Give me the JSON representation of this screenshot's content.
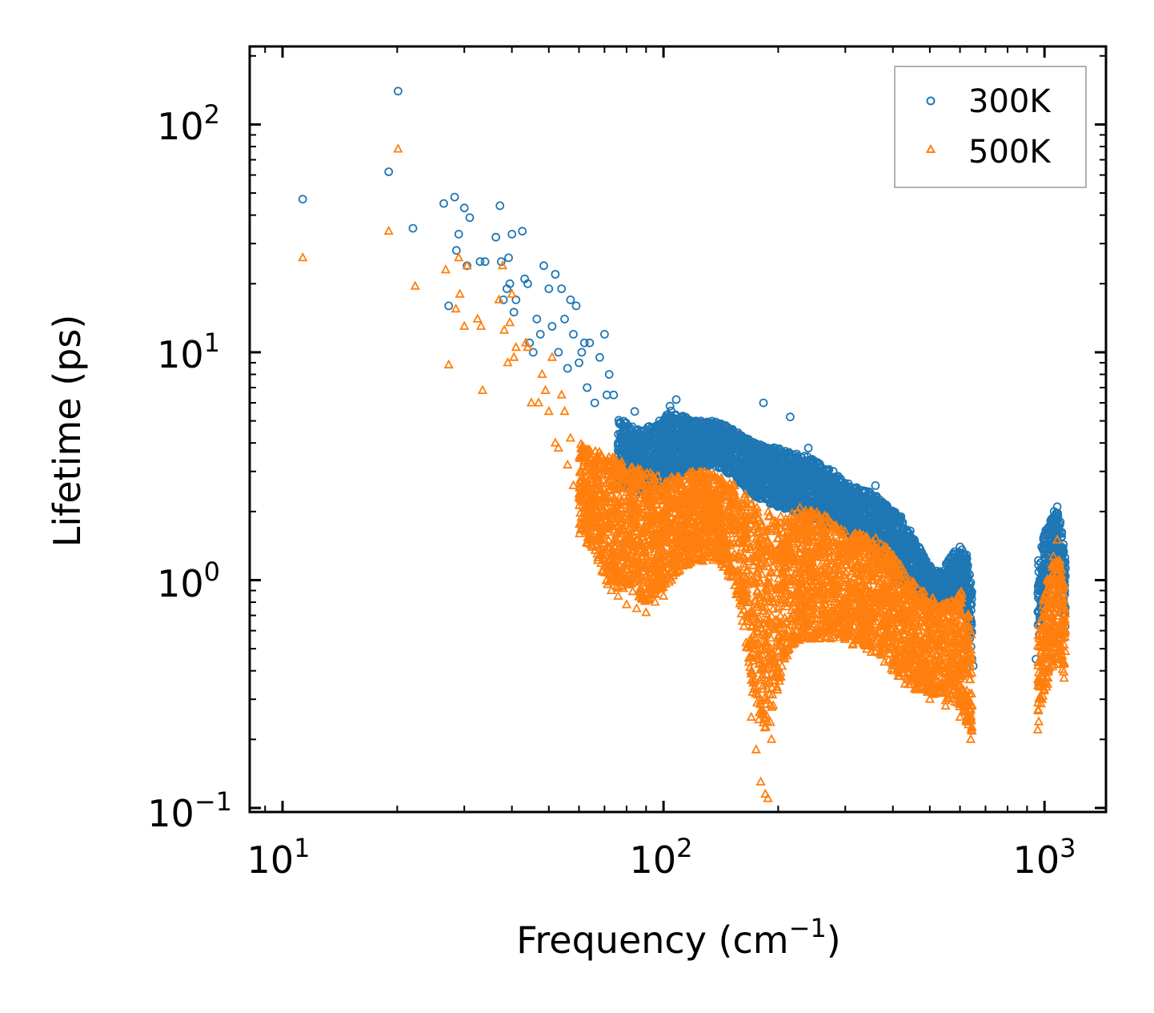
{
  "chart_data": {
    "type": "scatter",
    "title": "",
    "xlabel": "Frequency (cm",
    "xlabel_exp": "−1",
    "xlabel_suffix": ")",
    "ylabel": "Lifetime (ps)",
    "xscale": "log",
    "yscale": "log",
    "xlim": [
      8.2,
      1450
    ],
    "ylim": [
      0.096,
      220
    ],
    "xticks": [
      {
        "value": 10,
        "base": "10",
        "exp": "1"
      },
      {
        "value": 100,
        "base": "10",
        "exp": "2"
      },
      {
        "value": 1000,
        "base": "10",
        "exp": "3"
      }
    ],
    "yticks": [
      {
        "value": 0.1,
        "base": "10",
        "exp": "−1"
      },
      {
        "value": 1,
        "base": "10",
        "exp": "0"
      },
      {
        "value": 10,
        "base": "10",
        "exp": "1"
      },
      {
        "value": 100,
        "base": "10",
        "exp": "2"
      }
    ],
    "legend_position": "top-right",
    "series": [
      {
        "name": "300K",
        "marker": "circle",
        "color": "#1f77b4",
        "points": [
          [
            11.3,
            47
          ],
          [
            19.0,
            62
          ],
          [
            20.1,
            140
          ],
          [
            22.0,
            35
          ],
          [
            26.5,
            45
          ],
          [
            27.3,
            16
          ],
          [
            28.3,
            48
          ],
          [
            28.6,
            28
          ],
          [
            29.0,
            33
          ],
          [
            30.0,
            43
          ],
          [
            30.5,
            24
          ],
          [
            31.0,
            39
          ],
          [
            33.0,
            25
          ],
          [
            34.0,
            25
          ],
          [
            36.3,
            32
          ],
          [
            37.2,
            44
          ],
          [
            37.5,
            25
          ],
          [
            38.0,
            17
          ],
          [
            38.8,
            19
          ],
          [
            39.2,
            26
          ],
          [
            39.5,
            20
          ],
          [
            40.0,
            33
          ],
          [
            40.5,
            15
          ],
          [
            41.0,
            17
          ],
          [
            42.6,
            34
          ],
          [
            43.2,
            21
          ],
          [
            44.0,
            20
          ],
          [
            44.5,
            11
          ],
          [
            45.5,
            10
          ],
          [
            46.5,
            14
          ],
          [
            47.5,
            12
          ],
          [
            48.5,
            24
          ],
          [
            50.0,
            19
          ],
          [
            51.0,
            13
          ],
          [
            52.0,
            22
          ],
          [
            53.0,
            10
          ],
          [
            54.0,
            19
          ],
          [
            55.0,
            14
          ],
          [
            56.0,
            8.5
          ],
          [
            57.0,
            17
          ],
          [
            58.0,
            12
          ],
          [
            59.0,
            16
          ],
          [
            60.0,
            9.0
          ],
          [
            61.0,
            10
          ],
          [
            62.0,
            11
          ],
          [
            63.0,
            7.0
          ],
          [
            64.0,
            11
          ],
          [
            66.0,
            6.0
          ],
          [
            68.0,
            9.5
          ],
          [
            70.0,
            12
          ],
          [
            71.0,
            6.5
          ],
          [
            72.0,
            8.0
          ],
          [
            74.0,
            6.5
          ],
          [
            76.0,
            4.0
          ],
          [
            78.0,
            3.5
          ],
          [
            80.0,
            3.2
          ],
          [
            82.0,
            3.8
          ],
          [
            84.0,
            5.5
          ],
          [
            86.0,
            3.0
          ],
          [
            88.0,
            2.8
          ],
          [
            90.0,
            3.2
          ],
          [
            95.0,
            3.6
          ],
          [
            100.0,
            5.0
          ],
          [
            104.0,
            5.8
          ],
          [
            108.0,
            6.2
          ],
          [
            112.0,
            4.5
          ],
          [
            118.0,
            4.2
          ],
          [
            125.0,
            4.0
          ],
          [
            132.0,
            4.6
          ],
          [
            140.0,
            4.8
          ],
          [
            150.0,
            4.5
          ],
          [
            160.0,
            4.2
          ],
          [
            170.0,
            3.8
          ],
          [
            178.0,
            3.3
          ],
          [
            183.0,
            6.0
          ],
          [
            188.0,
            3.8
          ],
          [
            195.0,
            3.6
          ],
          [
            205.0,
            3.2
          ],
          [
            215.0,
            5.2
          ],
          [
            225.0,
            3.5
          ],
          [
            240.0,
            3.8
          ],
          [
            255.0,
            3.2
          ],
          [
            270.0,
            3.0
          ],
          [
            285.0,
            2.6
          ],
          [
            300.0,
            2.5
          ],
          [
            320.0,
            2.3
          ],
          [
            340.0,
            2.2
          ],
          [
            360.0,
            2.6
          ],
          [
            380.0,
            2.0
          ],
          [
            400.0,
            1.8
          ],
          [
            420.0,
            1.9
          ],
          [
            440.0,
            1.6
          ],
          [
            460.0,
            1.3
          ],
          [
            480.0,
            1.1
          ],
          [
            500.0,
            0.95
          ],
          [
            520.0,
            1.05
          ],
          [
            540.0,
            1.0
          ],
          [
            560.0,
            1.2
          ],
          [
            580.0,
            1.3
          ],
          [
            600.0,
            1.4
          ],
          [
            620.0,
            1.0
          ],
          [
            640.0,
            0.6
          ],
          [
            650.0,
            0.42
          ],
          [
            950.0,
            0.45
          ],
          [
            980.0,
            0.9
          ],
          [
            1000.0,
            1.4
          ],
          [
            1030.0,
            1.7
          ],
          [
            1060.0,
            2.0
          ],
          [
            1080.0,
            2.1
          ],
          [
            1100.0,
            1.8
          ],
          [
            1120.0,
            1.2
          ],
          [
            1130.0,
            0.9
          ]
        ],
        "band": [
          [
            76,
            2.6,
            5.2
          ],
          [
            85,
            2.4,
            4.6
          ],
          [
            95,
            2.5,
            4.8
          ],
          [
            105,
            2.8,
            5.6
          ],
          [
            115,
            3.0,
            5.2
          ],
          [
            125,
            3.1,
            5.0
          ],
          [
            135,
            3.2,
            5.0
          ],
          [
            145,
            3.0,
            4.8
          ],
          [
            155,
            2.8,
            4.5
          ],
          [
            165,
            2.5,
            4.2
          ],
          [
            175,
            2.3,
            4.0
          ],
          [
            185,
            2.2,
            3.9
          ],
          [
            200,
            2.1,
            3.8
          ],
          [
            220,
            2.0,
            3.6
          ],
          [
            240,
            1.9,
            3.5
          ],
          [
            260,
            1.8,
            3.2
          ],
          [
            280,
            1.7,
            3.0
          ],
          [
            300,
            1.6,
            2.7
          ],
          [
            330,
            1.5,
            2.5
          ],
          [
            360,
            1.3,
            2.4
          ],
          [
            390,
            1.1,
            2.1
          ],
          [
            420,
            0.95,
            1.9
          ],
          [
            450,
            0.85,
            1.6
          ],
          [
            480,
            0.8,
            1.3
          ],
          [
            510,
            0.75,
            1.1
          ],
          [
            540,
            0.75,
            1.1
          ],
          [
            570,
            0.8,
            1.3
          ],
          [
            600,
            0.8,
            1.4
          ],
          [
            625,
            0.65,
            1.3
          ],
          [
            645,
            0.45,
            0.9
          ],
          [
            960,
            0.5,
            1.2
          ],
          [
            1000,
            0.8,
            1.6
          ],
          [
            1040,
            1.0,
            1.9
          ],
          [
            1080,
            1.0,
            2.0
          ],
          [
            1110,
            0.8,
            1.7
          ],
          [
            1135,
            0.6,
            1.2
          ]
        ]
      },
      {
        "name": "500K",
        "marker": "triangle",
        "color": "#ff7f0e",
        "points": [
          [
            11.3,
            26
          ],
          [
            19.0,
            34
          ],
          [
            20.1,
            78
          ],
          [
            22.3,
            19.5
          ],
          [
            27.3,
            8.8
          ],
          [
            26.8,
            23
          ],
          [
            28.5,
            15.5
          ],
          [
            29.0,
            26
          ],
          [
            29.2,
            18
          ],
          [
            30.0,
            13
          ],
          [
            30.5,
            24
          ],
          [
            32.5,
            14
          ],
          [
            33.2,
            13
          ],
          [
            33.5,
            6.8
          ],
          [
            37.0,
            17
          ],
          [
            37.8,
            24
          ],
          [
            38.2,
            12.5
          ],
          [
            39.0,
            9.0
          ],
          [
            39.5,
            13.5
          ],
          [
            40.0,
            18
          ],
          [
            40.5,
            9.5
          ],
          [
            41.0,
            10.5
          ],
          [
            43.5,
            11
          ],
          [
            44.0,
            10.5
          ],
          [
            45.0,
            6.0
          ],
          [
            47.0,
            6.0
          ],
          [
            48.0,
            8.0
          ],
          [
            49.0,
            6.8
          ],
          [
            50.0,
            5.5
          ],
          [
            51.0,
            9.5
          ],
          [
            52.0,
            4.0
          ],
          [
            53.0,
            3.8
          ],
          [
            54.0,
            6.5
          ],
          [
            55.0,
            5.5
          ],
          [
            56.0,
            3.2
          ],
          [
            57.0,
            4.2
          ],
          [
            58.0,
            2.6
          ],
          [
            60.0,
            2.3
          ],
          [
            62.0,
            2.0
          ],
          [
            64.0,
            1.8
          ],
          [
            65.0,
            1.5
          ],
          [
            67.0,
            1.3
          ],
          [
            69.0,
            1.1
          ],
          [
            71.0,
            1.0
          ],
          [
            73.0,
            0.9
          ],
          [
            76.0,
            0.85
          ],
          [
            80.0,
            0.78
          ],
          [
            85.0,
            0.75
          ],
          [
            90.0,
            0.72
          ],
          [
            95.0,
            0.8
          ],
          [
            100.0,
            0.85
          ],
          [
            105.0,
            1.0
          ],
          [
            110.0,
            1.4
          ],
          [
            120.0,
            2.0
          ],
          [
            130.0,
            2.2
          ],
          [
            140.0,
            2.5
          ],
          [
            150.0,
            2.2
          ],
          [
            158.0,
            1.9
          ],
          [
            165.0,
            0.7
          ],
          [
            170.0,
            0.25
          ],
          [
            175.0,
            0.18
          ],
          [
            180.0,
            0.13
          ],
          [
            185.0,
            0.115
          ],
          [
            188.0,
            0.11
          ],
          [
            192.0,
            0.2
          ],
          [
            198.0,
            0.4
          ],
          [
            210.0,
            1.0
          ],
          [
            225.0,
            2.0
          ],
          [
            240.0,
            1.9
          ],
          [
            260.0,
            1.3
          ],
          [
            280.0,
            0.8
          ],
          [
            300.0,
            0.6
          ],
          [
            320.0,
            0.55
          ],
          [
            350.0,
            0.6
          ],
          [
            380.0,
            0.5
          ],
          [
            400.0,
            0.4
          ],
          [
            430.0,
            0.35
          ],
          [
            460.0,
            0.33
          ],
          [
            500.0,
            0.3
          ],
          [
            550.0,
            0.28
          ],
          [
            600.0,
            0.25
          ],
          [
            640.0,
            0.2
          ],
          [
            960.0,
            0.22
          ],
          [
            1000.0,
            0.35
          ],
          [
            1050.0,
            0.7
          ],
          [
            1080.0,
            1.5
          ],
          [
            1110.0,
            1.0
          ],
          [
            1130.0,
            0.75
          ]
        ],
        "band": [
          [
            60,
            1.6,
            4.0
          ],
          [
            66,
            1.3,
            3.8
          ],
          [
            72,
            0.9,
            3.6
          ],
          [
            80,
            0.9,
            3.2
          ],
          [
            90,
            0.8,
            3.0
          ],
          [
            100,
            0.9,
            2.8
          ],
          [
            110,
            1.1,
            2.9
          ],
          [
            120,
            1.2,
            3.0
          ],
          [
            130,
            1.2,
            3.0
          ],
          [
            140,
            1.2,
            2.9
          ],
          [
            150,
            1.0,
            2.7
          ],
          [
            158,
            0.8,
            2.5
          ],
          [
            165,
            0.5,
            2.4
          ],
          [
            172,
            0.3,
            2.2
          ],
          [
            180,
            0.22,
            2.1
          ],
          [
            188,
            0.2,
            2.0
          ],
          [
            196,
            0.28,
            2.0
          ],
          [
            205,
            0.4,
            2.0
          ],
          [
            215,
            0.5,
            2.1
          ],
          [
            230,
            0.55,
            2.1
          ],
          [
            250,
            0.55,
            2.0
          ],
          [
            270,
            0.55,
            1.9
          ],
          [
            290,
            0.55,
            1.7
          ],
          [
            310,
            0.52,
            1.6
          ],
          [
            340,
            0.5,
            1.6
          ],
          [
            370,
            0.45,
            1.5
          ],
          [
            400,
            0.4,
            1.3
          ],
          [
            430,
            0.35,
            1.1
          ],
          [
            460,
            0.33,
            0.95
          ],
          [
            500,
            0.32,
            0.85
          ],
          [
            540,
            0.3,
            0.8
          ],
          [
            580,
            0.28,
            0.85
          ],
          [
            610,
            0.26,
            0.9
          ],
          [
            630,
            0.22,
            0.75
          ],
          [
            645,
            0.2,
            0.6
          ],
          [
            960,
            0.22,
            0.6
          ],
          [
            1000,
            0.3,
            0.9
          ],
          [
            1040,
            0.4,
            1.2
          ],
          [
            1080,
            0.45,
            1.4
          ],
          [
            1110,
            0.4,
            1.1
          ],
          [
            1135,
            0.35,
            0.9
          ]
        ]
      }
    ]
  }
}
